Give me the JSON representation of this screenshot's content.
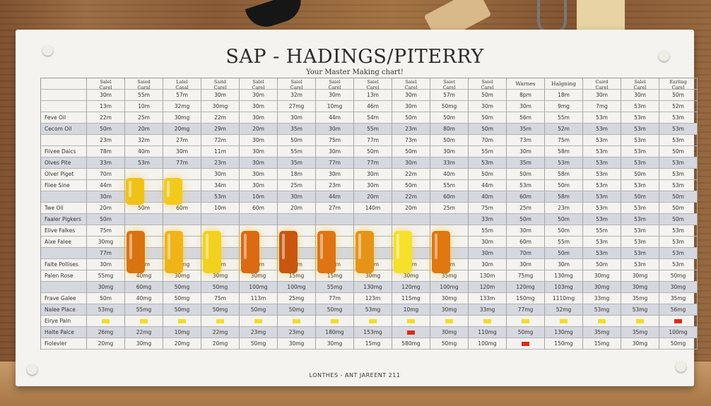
{
  "chart": {
    "title": "SAP - HADINGS/PITERRY",
    "subtitle": "Your Master Making chart!",
    "footer": "LONTHES - ANT JAREENT 211",
    "headers": [
      "",
      [
        "Salel",
        "Carel"
      ],
      [
        "Saied",
        "Caral"
      ],
      [
        "Lalel",
        "Casal"
      ],
      [
        "Saitd",
        "Carel"
      ],
      [
        "Salel",
        "Carel"
      ],
      [
        "Saiel",
        "Carel"
      ],
      [
        "Saiel",
        "Carel"
      ],
      [
        "Saiel",
        "Carel"
      ],
      [
        "Saiel",
        "Carel"
      ],
      [
        "Saiet",
        "Carel"
      ],
      [
        "Saiel",
        "Carel"
      ],
      "Warnes",
      "Halgning",
      [
        "Caird",
        "Carel"
      ],
      [
        "Salel",
        "Carel"
      ],
      [
        "Earling",
        "Carel"
      ]
    ],
    "rows": [
      {
        "name": "",
        "shaded": false,
        "cells": [
          "30m",
          "55m",
          "57m",
          "30m",
          "30m",
          "32m",
          "30m",
          "13m",
          "30m",
          "57m",
          "50m",
          "8pm",
          "18m",
          "30m",
          "30m",
          "50m"
        ]
      },
      {
        "name": "",
        "shaded": false,
        "cells": [
          "13m",
          "10m",
          "32mg",
          "30mg",
          "30m",
          "27mg",
          "10mg",
          "46m",
          "30m",
          "50mg",
          "30m",
          "30m",
          "9mg",
          "7mg",
          "53m",
          "52m"
        ]
      },
      {
        "name": "Feve Oil",
        "shaded": false,
        "cells": [
          "22m",
          "25m",
          "30mg",
          "22m",
          "30m",
          "30m",
          "44m",
          "54m",
          "50m",
          "50m",
          "50m",
          "56m",
          "55m",
          "53m",
          "53m",
          "53m"
        ]
      },
      {
        "name": "Cecom Oil",
        "shaded": true,
        "cells": [
          "50m",
          "20m",
          "20mg",
          "29m",
          "20m",
          "35m",
          "30m",
          "55m",
          "23m",
          "80m",
          "50m",
          "35m",
          "52m",
          "53m",
          "53m",
          "53m"
        ]
      },
      {
        "name": "",
        "shaded": false,
        "cells": [
          "23m",
          "32m",
          "27m",
          "72m",
          "30m",
          "50m",
          "75m",
          "77m",
          "73m",
          "50m",
          "70m",
          "73m",
          "75m",
          "53m",
          "53m",
          "53m"
        ]
      },
      {
        "name": "Fiivee Daics",
        "shaded": false,
        "cells": [
          "78m",
          "40m",
          "30m",
          "11m",
          "30m",
          "55m",
          "30m",
          "50m",
          "50m",
          "30m",
          "55m",
          "30m",
          "58m",
          "53m",
          "53m",
          "50m"
        ]
      },
      {
        "name": "Olves Pite",
        "shaded": true,
        "cells": [
          "33m",
          "53m",
          "77m",
          "23m",
          "30m",
          "35m",
          "77m",
          "77m",
          "30m",
          "33m",
          "53m",
          "35m",
          "53m",
          "53m",
          "53m",
          "53m"
        ]
      },
      {
        "name": "Olver Piget",
        "shaded": false,
        "cells": [
          "70m",
          "",
          "",
          "30m",
          "30m",
          "18m",
          "30m",
          "30m",
          "22m",
          "40m",
          "50m",
          "50m",
          "58m",
          "53m",
          "50m",
          "53m"
        ]
      },
      {
        "name": "Fiiee Sine",
        "shaded": false,
        "cells": [
          "44m",
          "",
          "",
          "34m",
          "30m",
          "25m",
          "23m",
          "30m",
          "50m",
          "55m",
          "44m",
          "53m",
          "50m",
          "53m",
          "53m",
          "53m"
        ]
      },
      {
        "name": "",
        "shaded": true,
        "cells": [
          "30m",
          "",
          "",
          "53m",
          "10m",
          "30m",
          "44m",
          "20m",
          "22m",
          "60m",
          "40m",
          "60m",
          "58m",
          "53m",
          "50m",
          "50m"
        ]
      },
      {
        "name": "Twe Oil",
        "shaded": false,
        "cells": [
          "20m",
          "50m",
          "60m",
          "10m",
          "60m",
          "20m",
          "27m",
          "140m",
          "20m",
          "25m",
          "75m",
          "25m",
          "23m",
          "53m",
          "53m",
          "50m"
        ]
      },
      {
        "name": "Faaler Pigkers",
        "shaded": true,
        "cells": [
          "50m",
          "",
          "",
          "",
          "",
          "",
          "",
          "",
          "",
          "",
          "33m",
          "50m",
          "50m",
          "53m",
          "53m",
          "50m"
        ]
      },
      {
        "name": "Elive Falkes",
        "shaded": false,
        "cells": [
          "75m",
          "",
          "",
          "",
          "",
          "",
          "",
          "",
          "",
          "",
          "55m",
          "30m",
          "50m",
          "55m",
          "53m",
          "53m"
        ]
      },
      {
        "name": "Aixe Falee",
        "shaded": false,
        "cells": [
          "30mg",
          "",
          "",
          "",
          "",
          "",
          "",
          "",
          "",
          "",
          "30m",
          "60m",
          "55m",
          "53m",
          "53m",
          "53m"
        ]
      },
      {
        "name": "",
        "shaded": true,
        "cells": [
          "77m",
          "",
          "",
          "",
          "",
          "",
          "",
          "",
          "",
          "",
          "30m",
          "70m",
          "50m",
          "53m",
          "53m",
          "53m"
        ]
      },
      {
        "name": "Falte Pollises",
        "shaded": false,
        "cells": [
          "30m",
          "20m",
          "20mg",
          "32m",
          "10m",
          "30m",
          "74m",
          "35m",
          "40m",
          "30m",
          "30m",
          "30m",
          "30m",
          "50m",
          "53m",
          "53m"
        ]
      },
      {
        "name": "Palen Rose",
        "shaded": false,
        "cells": [
          "55mg",
          "40mg",
          "30mg",
          "30mg",
          "30mg",
          "15mg",
          "15mg",
          "30mg",
          "30mg",
          "35mg",
          "130m",
          "75mg",
          "130mg",
          "30mg",
          "30mg",
          "50mg"
        ]
      },
      {
        "name": "",
        "shaded": true,
        "cells": [
          "30mg",
          "60mg",
          "50mg",
          "50mg",
          "100mg",
          "100mg",
          "55mg",
          "130mg",
          "120mg",
          "100mg",
          "120m",
          "120mg",
          "103mg",
          "30mg",
          "30mg",
          "30mg"
        ]
      },
      {
        "name": "Frave Galee",
        "shaded": false,
        "cells": [
          "50m",
          "40mg",
          "50mg",
          "75m",
          "113m",
          "25mg",
          "77m",
          "123m",
          "115mg",
          "30mg",
          "133m",
          "150mg",
          "1110mg",
          "33mg",
          "35mg",
          "35mg"
        ]
      },
      {
        "name": "Nalee Place",
        "shaded": true,
        "cells": [
          "53mg",
          "55mg",
          "50mg",
          "50mg",
          "50mg",
          "50mg",
          "50mg",
          "53mg",
          "10mg",
          "30mg",
          "33mg",
          "77mg",
          "52mg",
          "53mg",
          "53mg",
          "56mg"
        ]
      },
      {
        "name": "Eirye Paln",
        "shaded": false,
        "cells": [
          "",
          "",
          "",
          "",
          "",
          "",
          "",
          "",
          "",
          "",
          "",
          "",
          "",
          "",
          "",
          ""
        ]
      },
      {
        "name": "Halte Palce",
        "shaded": true,
        "cells": [
          "26mg",
          "22mg",
          "10mg",
          "22mg",
          "23mg",
          "23mg",
          "180mg",
          "153mg",
          "",
          "30mg",
          "110mg",
          "50mg",
          "130mg",
          "35mg",
          "35mg",
          "100mg"
        ]
      },
      {
        "name": "Fiolevier",
        "shaded": false,
        "cells": [
          "20mg",
          "30mg",
          "20mg",
          "20mg",
          "50mg",
          "30mg",
          "30mg",
          "15mg",
          "580mg",
          "50mg",
          "100mg",
          "",
          "150mg",
          "15mg",
          "30mg",
          "50mg"
        ]
      }
    ]
  },
  "markers": {
    "yellow": "#f2dc2e",
    "red": "#dc2b1e"
  },
  "colors": {
    "vial_amber": "#d9730f",
    "vial_gold": "#f0b418",
    "vial_yellow": "#f2d21e",
    "vial_lemon": "#f5e02a"
  }
}
